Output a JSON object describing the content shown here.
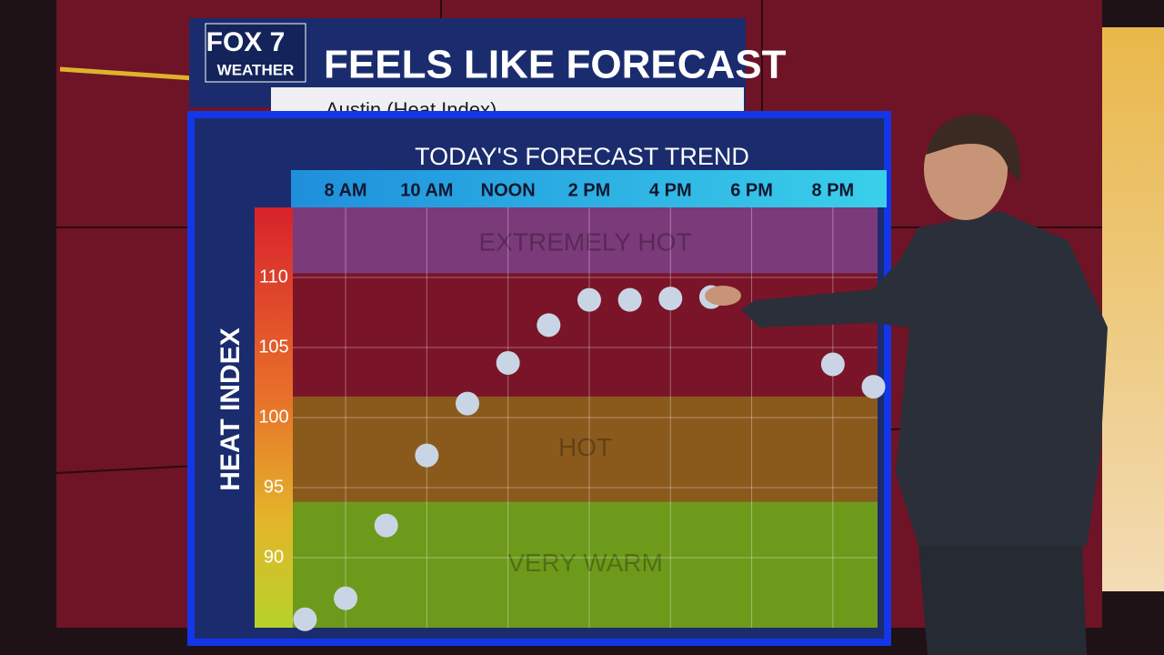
{
  "header": {
    "logo": "FOX 7",
    "logo_sub": "WEATHER",
    "title": "FEELS LIKE FORECAST",
    "subtitle": "Austin (Heat Index)"
  },
  "chart_data": {
    "type": "scatter",
    "title": "TODAY'S FORECAST TREND",
    "y_label": "HEAT INDEX",
    "x": [
      7,
      8,
      9,
      10,
      11,
      12,
      13,
      14,
      15,
      16,
      17,
      20,
      21
    ],
    "values": [
      85.6,
      87.1,
      92.3,
      97.3,
      101,
      103.9,
      106.6,
      108.4,
      108.4,
      108.5,
      108.6,
      103.8,
      102.2
    ],
    "color": "#c9d5e4",
    "xlim": [
      6.7,
      21.1
    ],
    "xticks": [
      {
        "value": 8,
        "label": "8 AM"
      },
      {
        "value": 10,
        "label": "10 AM"
      },
      {
        "value": 12,
        "label": "NOON"
      },
      {
        "value": 14,
        "label": "2 PM"
      },
      {
        "value": 16,
        "label": "4 PM"
      },
      {
        "value": 18,
        "label": "6 PM"
      },
      {
        "value": 20,
        "label": "8 PM"
      }
    ],
    "ylim": [
      85,
      115
    ],
    "yticks": [
      90,
      95,
      100,
      105,
      110
    ],
    "grid": true,
    "bands": [
      {
        "label": "VERY WARM",
        "from": 85,
        "to": 94,
        "color": "#6e9a1c"
      },
      {
        "label": "HOT",
        "from": 94,
        "to": 101.5,
        "color": "#8a5a1c"
      },
      {
        "label": "EXTREMELY HOT",
        "from": 110.3,
        "to": 115,
        "color": "#7b3a7a"
      }
    ]
  }
}
